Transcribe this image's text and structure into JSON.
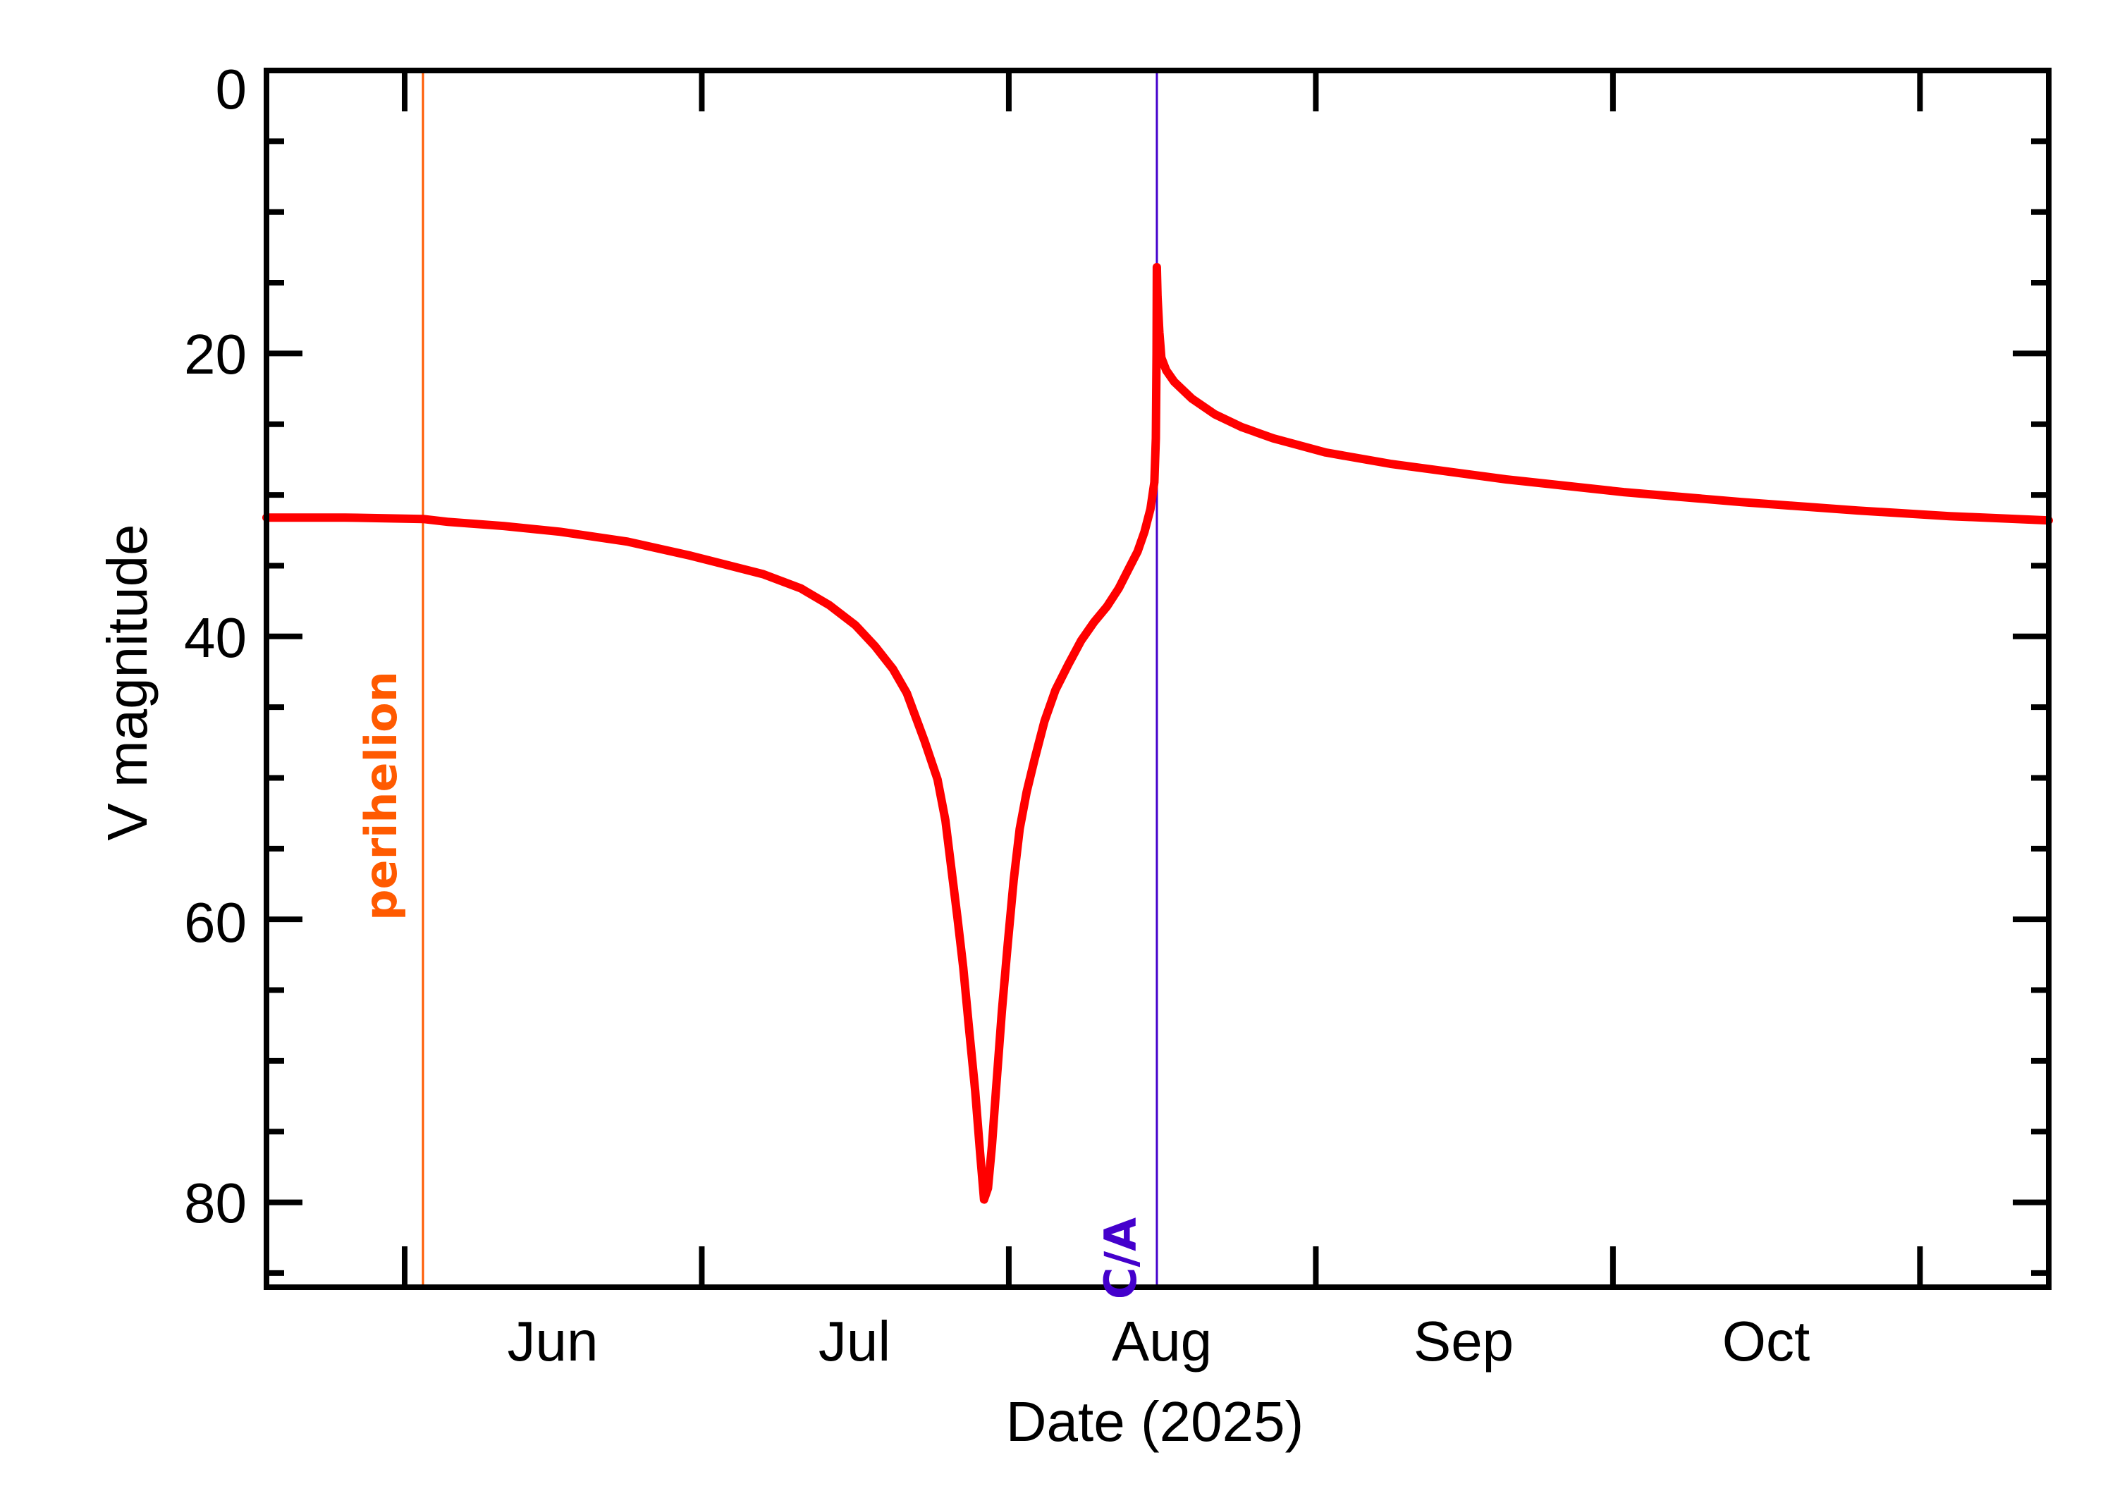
{
  "chart_data": {
    "type": "line",
    "title": "",
    "xlabel": "Date (2025)",
    "ylabel": "V magnitude",
    "x_units": "days since 2025-06-01",
    "xlim": [
      -13.95,
      166.0
    ],
    "ylim": [
      0,
      86
    ],
    "y_inverted": true,
    "grid": false,
    "legend": null,
    "x_ticks": [
      {
        "label": "Jun",
        "start": 0,
        "end": 30
      },
      {
        "label": "Jul",
        "start": 30,
        "end": 61
      },
      {
        "label": "Aug",
        "start": 61,
        "end": 92
      },
      {
        "label": "Sep",
        "start": 92,
        "end": 122
      },
      {
        "label": "Oct",
        "start": 122,
        "end": 153
      }
    ],
    "x_tick_positions": [
      0,
      30,
      61,
      92,
      122,
      153
    ],
    "y_major_ticks": [
      0,
      20,
      40,
      60,
      80
    ],
    "y_tick_labels": [
      "0",
      "20",
      "40",
      "60",
      "80"
    ],
    "y_minor_ticks": [
      5,
      10,
      15,
      25,
      30,
      35,
      45,
      50,
      55,
      65,
      70,
      75,
      85
    ],
    "series": [
      {
        "name": "V magnitude",
        "color": "#ff0000",
        "points": [
          [
            -13.95,
            31.6
          ],
          [
            -6,
            31.6
          ],
          [
            1.85,
            31.7
          ],
          [
            4.3,
            31.9
          ],
          [
            10,
            32.2
          ],
          [
            15.7,
            32.6
          ],
          [
            22.5,
            33.3
          ],
          [
            28.9,
            34.3
          ],
          [
            36.2,
            35.6
          ],
          [
            40,
            36.6
          ],
          [
            42.9,
            37.8
          ],
          [
            45.5,
            39.2
          ],
          [
            47.5,
            40.7
          ],
          [
            49.3,
            42.3
          ],
          [
            50.7,
            44.0
          ],
          [
            52.5,
            47.4
          ],
          [
            53.8,
            50.1
          ],
          [
            54.6,
            53.0
          ],
          [
            55.2,
            56.4
          ],
          [
            55.8,
            59.8
          ],
          [
            56.4,
            63.4
          ],
          [
            57.0,
            67.8
          ],
          [
            57.6,
            72.1
          ],
          [
            58.1,
            76.5
          ],
          [
            58.5,
            79.8
          ],
          [
            58.9,
            79.0
          ],
          [
            59.3,
            76.0
          ],
          [
            59.7,
            72.1
          ],
          [
            60.3,
            66.5
          ],
          [
            60.9,
            61.7
          ],
          [
            61.5,
            57.2
          ],
          [
            62.1,
            53.6
          ],
          [
            62.8,
            51.0
          ],
          [
            63.6,
            48.7
          ],
          [
            64.6,
            46.0
          ],
          [
            65.7,
            43.8
          ],
          [
            67.0,
            42.0
          ],
          [
            68.3,
            40.3
          ],
          [
            69.6,
            39.0
          ],
          [
            70.9,
            37.9
          ],
          [
            72.1,
            36.6
          ],
          [
            73.2,
            35.1
          ],
          [
            74.0,
            34.0
          ],
          [
            74.7,
            32.6
          ],
          [
            75.3,
            31.0
          ],
          [
            75.7,
            29.1
          ],
          [
            75.85,
            26.0
          ],
          [
            75.92,
            20.0
          ],
          [
            75.95,
            13.9
          ],
          [
            76.02,
            16.0
          ],
          [
            76.2,
            18.5
          ],
          [
            76.4,
            20.3
          ],
          [
            76.9,
            21.2
          ],
          [
            77.7,
            22.0
          ],
          [
            79.5,
            23.2
          ],
          [
            81.8,
            24.3
          ],
          [
            84.5,
            25.2
          ],
          [
            87.7,
            26.0
          ],
          [
            93,
            27.0
          ],
          [
            99.5,
            27.8
          ],
          [
            111.2,
            28.9
          ],
          [
            123.1,
            29.8
          ],
          [
            134.9,
            30.5
          ],
          [
            146.7,
            31.1
          ],
          [
            156,
            31.5
          ],
          [
            166.0,
            31.8
          ]
        ]
      }
    ],
    "markers": [
      {
        "label": "perihelion",
        "x": 1.85,
        "color": "#ff5a00"
      },
      {
        "label": "C/A",
        "x": 75.95,
        "color": "#4400cc"
      }
    ],
    "annotations": [
      "perihelion",
      "C/A"
    ]
  },
  "axes": {
    "xlabel": "Date (2025)",
    "ylabel": "V magnitude"
  },
  "markers": {
    "perihelion": {
      "label": "perihelion",
      "color": "#ff5a00"
    },
    "closest_approach": {
      "label": "C/A",
      "color": "#4400cc"
    }
  },
  "x_tick_labels": [
    "Jun",
    "Jul",
    "Aug",
    "Sep",
    "Oct"
  ],
  "y_tick_labels": [
    "0",
    "20",
    "40",
    "60",
    "80"
  ]
}
